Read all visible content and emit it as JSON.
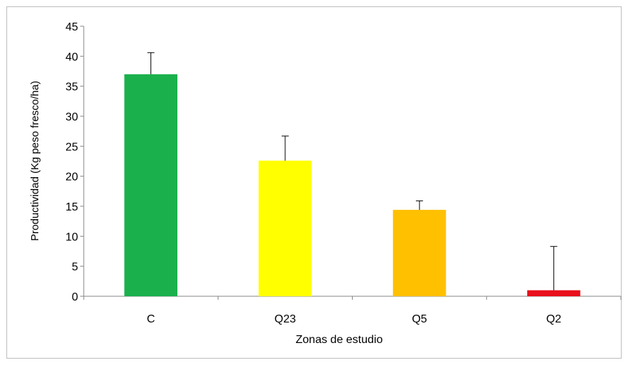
{
  "chart_data": {
    "type": "bar",
    "categories": [
      "C",
      "Q23",
      "Q5",
      "Q2"
    ],
    "values": [
      37,
      22.6,
      14.4,
      1
    ],
    "error_plus": [
      3.6,
      4.1,
      1.5,
      7.3
    ],
    "colors": [
      "#1ab04c",
      "#ffff00",
      "#ffc000",
      "#e8101c"
    ],
    "xlabel": "Zonas de estudio",
    "ylabel": "Productividad (Kg peso fresco/ha)",
    "ylim": [
      0,
      45
    ],
    "yticks": [
      "0",
      "5",
      "10",
      "15",
      "20",
      "25",
      "30",
      "35",
      "40",
      "45"
    ],
    "grid": false,
    "legend": "none"
  }
}
